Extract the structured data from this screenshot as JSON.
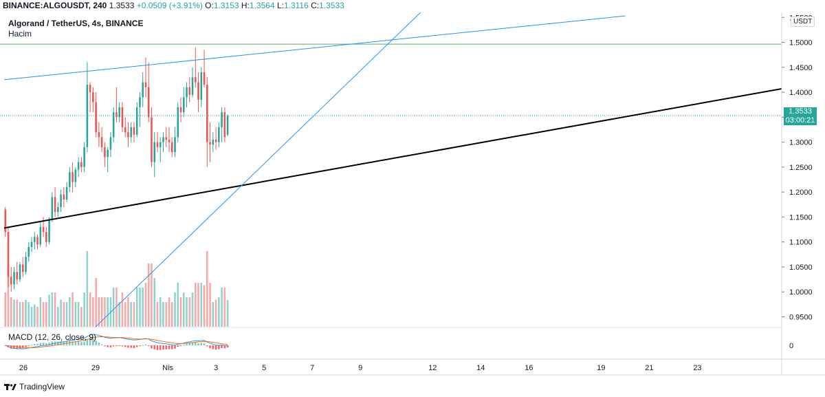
{
  "header": {
    "symbol": "BINANCE:ALGOUSDT, 240",
    "last": "1.3533",
    "change": "+0.0509 (+3.91%)",
    "o_label": "O:",
    "o_value": "1.3153",
    "h_label": "H:",
    "h_value": "1.3564",
    "l_label": "L:",
    "l_value": "1.3116",
    "c_label": "C:",
    "c_value": "1.3533"
  },
  "title": "Algorand / TetherUS, 4s, BINANCE",
  "volume_label": "Hacim",
  "macd_label": "MACD (12, 26, close, 9)",
  "unit": "USDT",
  "price_tag": {
    "price": "1.3533",
    "countdown": "03:00:21"
  },
  "footer": {
    "brand": "TradingView"
  },
  "colors": {
    "up": "#26a69a",
    "down": "#ef5350",
    "trendline": "#000000",
    "channel": "#2196f3",
    "level": "#4caf50"
  },
  "chart_data": {
    "type": "candlestick",
    "y_axis": {
      "ticks": [
        "1.5500",
        "1.5000",
        "1.4500",
        "1.4000",
        "1.3500",
        "1.3000",
        "1.2500",
        "1.2000",
        "1.1500",
        "1.1000",
        "1.0500",
        "1.0000",
        "0.9500"
      ],
      "range": [
        0.93,
        1.56
      ]
    },
    "x_axis": {
      "ticks": [
        {
          "label": "26",
          "x": 0
        },
        {
          "label": "29",
          "x": 3
        },
        {
          "label": "Nis",
          "x": 6
        },
        {
          "label": "3",
          "x": 8
        },
        {
          "label": "5",
          "x": 10
        },
        {
          "label": "7",
          "x": 12
        },
        {
          "label": "9",
          "x": 14
        },
        {
          "label": "12",
          "x": 17
        },
        {
          "label": "14",
          "x": 19
        },
        {
          "label": "16",
          "x": 21
        },
        {
          "label": "19",
          "x": 24
        },
        {
          "label": "21",
          "x": 26
        },
        {
          "label": "23",
          "x": 28
        }
      ],
      "range": [
        -0.8,
        31.5
      ]
    },
    "macd_axis": {
      "ticks": [
        "0"
      ]
    },
    "horizontal_level": 1.4965,
    "current_price": 1.3533,
    "trendlines": [
      {
        "name": "support",
        "from": [
          -0.8,
          1.128
        ],
        "to": [
          31.5,
          1.407
        ]
      },
      {
        "name": "upper-channel",
        "from": [
          -0.8,
          1.425
        ],
        "to": [
          25.0,
          1.553
        ]
      },
      {
        "name": "steep-line",
        "from": [
          3.0,
          0.93
        ],
        "to": [
          16.5,
          1.56
        ]
      }
    ],
    "candles": [
      {
        "o": 1.165,
        "h": 1.17,
        "l": 1.11,
        "c": 1.12
      },
      {
        "o": 1.12,
        "h": 1.13,
        "l": 1.01,
        "c": 1.03
      },
      {
        "o": 1.03,
        "h": 1.05,
        "l": 1.0,
        "c": 1.015
      },
      {
        "o": 1.015,
        "h": 1.05,
        "l": 1.005,
        "c": 1.04
      },
      {
        "o": 1.04,
        "h": 1.06,
        "l": 1.015,
        "c": 1.025
      },
      {
        "o": 1.025,
        "h": 1.06,
        "l": 1.02,
        "c": 1.055
      },
      {
        "o": 1.055,
        "h": 1.07,
        "l": 1.03,
        "c": 1.04
      },
      {
        "o": 1.04,
        "h": 1.08,
        "l": 1.035,
        "c": 1.07
      },
      {
        "o": 1.07,
        "h": 1.1,
        "l": 1.06,
        "c": 1.09
      },
      {
        "o": 1.09,
        "h": 1.11,
        "l": 1.08,
        "c": 1.1
      },
      {
        "o": 1.1,
        "h": 1.12,
        "l": 1.085,
        "c": 1.11
      },
      {
        "o": 1.11,
        "h": 1.115,
        "l": 1.085,
        "c": 1.095
      },
      {
        "o": 1.095,
        "h": 1.14,
        "l": 1.09,
        "c": 1.13
      },
      {
        "o": 1.13,
        "h": 1.15,
        "l": 1.11,
        "c": 1.12
      },
      {
        "o": 1.12,
        "h": 1.13,
        "l": 1.09,
        "c": 1.1
      },
      {
        "o": 1.1,
        "h": 1.15,
        "l": 1.095,
        "c": 1.145
      },
      {
        "o": 1.145,
        "h": 1.2,
        "l": 1.14,
        "c": 1.19
      },
      {
        "o": 1.19,
        "h": 1.21,
        "l": 1.15,
        "c": 1.16
      },
      {
        "o": 1.16,
        "h": 1.18,
        "l": 1.15,
        "c": 1.17
      },
      {
        "o": 1.17,
        "h": 1.205,
        "l": 1.16,
        "c": 1.195
      },
      {
        "o": 1.195,
        "h": 1.21,
        "l": 1.17,
        "c": 1.185
      },
      {
        "o": 1.185,
        "h": 1.22,
        "l": 1.18,
        "c": 1.21
      },
      {
        "o": 1.21,
        "h": 1.25,
        "l": 1.2,
        "c": 1.24
      },
      {
        "o": 1.24,
        "h": 1.26,
        "l": 1.2,
        "c": 1.22
      },
      {
        "o": 1.22,
        "h": 1.25,
        "l": 1.21,
        "c": 1.245
      },
      {
        "o": 1.245,
        "h": 1.27,
        "l": 1.23,
        "c": 1.26
      },
      {
        "o": 1.26,
        "h": 1.27,
        "l": 1.24,
        "c": 1.25
      },
      {
        "o": 1.25,
        "h": 1.3,
        "l": 1.24,
        "c": 1.29
      },
      {
        "o": 1.29,
        "h": 1.46,
        "l": 1.28,
        "c": 1.415
      },
      {
        "o": 1.415,
        "h": 1.42,
        "l": 1.36,
        "c": 1.4
      },
      {
        "o": 1.4,
        "h": 1.41,
        "l": 1.36,
        "c": 1.38
      },
      {
        "o": 1.38,
        "h": 1.4,
        "l": 1.31,
        "c": 1.32
      },
      {
        "o": 1.32,
        "h": 1.34,
        "l": 1.29,
        "c": 1.31
      },
      {
        "o": 1.31,
        "h": 1.33,
        "l": 1.28,
        "c": 1.29
      },
      {
        "o": 1.29,
        "h": 1.3,
        "l": 1.25,
        "c": 1.27
      },
      {
        "o": 1.27,
        "h": 1.29,
        "l": 1.24,
        "c": 1.285
      },
      {
        "o": 1.285,
        "h": 1.32,
        "l": 1.27,
        "c": 1.31
      },
      {
        "o": 1.31,
        "h": 1.37,
        "l": 1.3,
        "c": 1.36
      },
      {
        "o": 1.36,
        "h": 1.41,
        "l": 1.34,
        "c": 1.35
      },
      {
        "o": 1.35,
        "h": 1.38,
        "l": 1.34,
        "c": 1.37
      },
      {
        "o": 1.37,
        "h": 1.38,
        "l": 1.32,
        "c": 1.33
      },
      {
        "o": 1.33,
        "h": 1.35,
        "l": 1.31,
        "c": 1.32
      },
      {
        "o": 1.32,
        "h": 1.34,
        "l": 1.29,
        "c": 1.31
      },
      {
        "o": 1.31,
        "h": 1.34,
        "l": 1.3,
        "c": 1.33
      },
      {
        "o": 1.33,
        "h": 1.34,
        "l": 1.3,
        "c": 1.315
      },
      {
        "o": 1.315,
        "h": 1.38,
        "l": 1.31,
        "c": 1.37
      },
      {
        "o": 1.37,
        "h": 1.4,
        "l": 1.33,
        "c": 1.39
      },
      {
        "o": 1.39,
        "h": 1.44,
        "l": 1.37,
        "c": 1.42
      },
      {
        "o": 1.42,
        "h": 1.47,
        "l": 1.39,
        "c": 1.41
      },
      {
        "o": 1.41,
        "h": 1.46,
        "l": 1.34,
        "c": 1.35
      },
      {
        "o": 1.35,
        "h": 1.37,
        "l": 1.25,
        "c": 1.26
      },
      {
        "o": 1.26,
        "h": 1.32,
        "l": 1.23,
        "c": 1.3
      },
      {
        "o": 1.3,
        "h": 1.32,
        "l": 1.28,
        "c": 1.29
      },
      {
        "o": 1.29,
        "h": 1.31,
        "l": 1.26,
        "c": 1.3
      },
      {
        "o": 1.3,
        "h": 1.32,
        "l": 1.28,
        "c": 1.31
      },
      {
        "o": 1.31,
        "h": 1.33,
        "l": 1.29,
        "c": 1.305
      },
      {
        "o": 1.305,
        "h": 1.33,
        "l": 1.28,
        "c": 1.3
      },
      {
        "o": 1.3,
        "h": 1.31,
        "l": 1.27,
        "c": 1.28
      },
      {
        "o": 1.28,
        "h": 1.33,
        "l": 1.27,
        "c": 1.31
      },
      {
        "o": 1.31,
        "h": 1.38,
        "l": 1.3,
        "c": 1.37
      },
      {
        "o": 1.37,
        "h": 1.39,
        "l": 1.34,
        "c": 1.36
      },
      {
        "o": 1.36,
        "h": 1.41,
        "l": 1.35,
        "c": 1.39
      },
      {
        "o": 1.39,
        "h": 1.42,
        "l": 1.37,
        "c": 1.41
      },
      {
        "o": 1.41,
        "h": 1.43,
        "l": 1.38,
        "c": 1.395
      },
      {
        "o": 1.395,
        "h": 1.45,
        "l": 1.39,
        "c": 1.43
      },
      {
        "o": 1.43,
        "h": 1.49,
        "l": 1.41,
        "c": 1.42
      },
      {
        "o": 1.42,
        "h": 1.44,
        "l": 1.36,
        "c": 1.385
      },
      {
        "o": 1.385,
        "h": 1.45,
        "l": 1.37,
        "c": 1.44
      },
      {
        "o": 1.44,
        "h": 1.485,
        "l": 1.41,
        "c": 1.415
      },
      {
        "o": 1.415,
        "h": 1.43,
        "l": 1.25,
        "c": 1.3
      },
      {
        "o": 1.3,
        "h": 1.34,
        "l": 1.26,
        "c": 1.295
      },
      {
        "o": 1.295,
        "h": 1.32,
        "l": 1.28,
        "c": 1.305
      },
      {
        "o": 1.305,
        "h": 1.33,
        "l": 1.285,
        "c": 1.3
      },
      {
        "o": 1.3,
        "h": 1.34,
        "l": 1.29,
        "c": 1.33
      },
      {
        "o": 1.33,
        "h": 1.37,
        "l": 1.3,
        "c": 1.36
      },
      {
        "o": 1.36,
        "h": 1.37,
        "l": 1.3,
        "c": 1.31
      },
      {
        "o": 1.315,
        "h": 1.356,
        "l": 1.312,
        "c": 1.353
      }
    ],
    "x_start": -0.75,
    "x_step": 0.1215
  }
}
